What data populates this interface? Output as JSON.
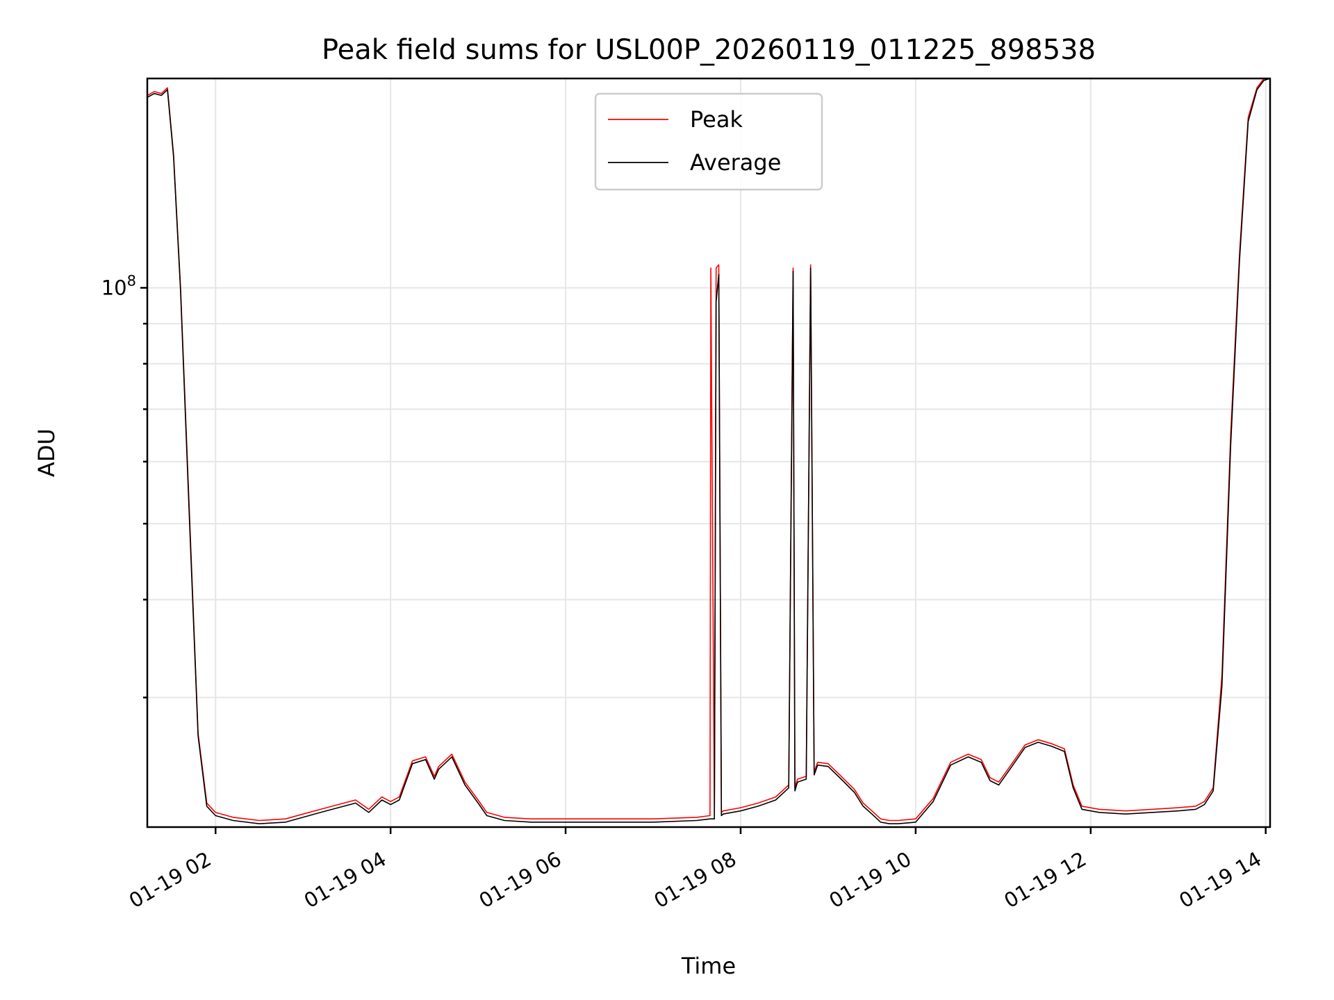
{
  "chart_data": {
    "type": "line",
    "title": "Peak field sums for USL00P_20260119_011225_898538",
    "xlabel": "Time",
    "ylabel": "ADU",
    "yscale": "log",
    "xlim": [
      1.22,
      14.05
    ],
    "ylim": [
      20500000.0,
      185000000.0
    ],
    "grid": true,
    "legend_position": "top-center",
    "x_ticks": [
      {
        "value": 2,
        "label": "01-19 02"
      },
      {
        "value": 4,
        "label": "01-19 04"
      },
      {
        "value": 6,
        "label": "01-19 06"
      },
      {
        "value": 8,
        "label": "01-19 08"
      },
      {
        "value": 10,
        "label": "01-19 10"
      },
      {
        "value": 12,
        "label": "01-19 12"
      },
      {
        "value": 14,
        "label": "01-19 14"
      }
    ],
    "y_major_ticks": [
      {
        "value": 100000000,
        "base": "10",
        "exponent": "8"
      }
    ],
    "y_minor_ticks": [
      30000000,
      40000000,
      50000000,
      60000000,
      70000000,
      80000000,
      90000000
    ],
    "series": [
      {
        "name": "Peak",
        "color": "#ff0000",
        "x": [
          1.22,
          1.3,
          1.38,
          1.45,
          1.52,
          1.6,
          1.7,
          1.8,
          1.9,
          2.0,
          2.2,
          2.5,
          2.8,
          3.0,
          3.2,
          3.4,
          3.6,
          3.75,
          3.9,
          4.0,
          4.1,
          4.25,
          4.4,
          4.5,
          4.55,
          4.7,
          4.85,
          5.0,
          5.1,
          5.3,
          5.6,
          6.0,
          6.5,
          7.0,
          7.5,
          7.65,
          7.66,
          7.7,
          7.72,
          7.75,
          7.78,
          7.8,
          8.0,
          8.2,
          8.4,
          8.55,
          8.6,
          8.62,
          8.65,
          8.75,
          8.8,
          8.84,
          8.88,
          9.0,
          9.15,
          9.3,
          9.4,
          9.5,
          9.6,
          9.7,
          9.8,
          10.0,
          10.2,
          10.4,
          10.6,
          10.75,
          10.85,
          10.95,
          11.1,
          11.25,
          11.4,
          11.55,
          11.7,
          11.8,
          11.9,
          12.1,
          12.4,
          12.7,
          13.0,
          13.2,
          13.3,
          13.4,
          13.5,
          13.6,
          13.7,
          13.8,
          13.9,
          13.98,
          14.05
        ],
        "y": [
          176000000,
          178000000,
          177000000,
          180000000,
          148000000,
          100000000,
          52000000,
          27000000,
          22000000,
          21400000,
          21100000,
          20900000,
          21000000,
          21300000,
          21600000,
          21900000,
          22200000,
          21600000,
          22400000,
          22100000,
          22400000,
          24900000,
          25200000,
          23800000,
          24500000,
          25400000,
          23400000,
          22200000,
          21400000,
          21100000,
          21000000,
          21000000,
          21000000,
          21000000,
          21100000,
          21200000,
          106000000,
          21200000,
          106000000,
          107000000,
          21400000,
          21500000,
          21700000,
          22000000,
          22400000,
          23200000,
          106000000,
          23000000,
          23600000,
          23800000,
          107000000,
          24100000,
          24800000,
          24700000,
          23800000,
          22900000,
          22000000,
          21500000,
          21000000,
          20900000,
          20900000,
          21000000,
          22300000,
          24800000,
          25400000,
          25000000,
          23700000,
          23400000,
          24700000,
          26100000,
          26500000,
          26200000,
          25800000,
          23200000,
          21800000,
          21600000,
          21500000,
          21600000,
          21700000,
          21800000,
          22100000,
          23000000,
          32000000,
          65000000,
          110000000,
          165000000,
          180000000,
          185000000,
          185000000
        ]
      },
      {
        "name": "Average",
        "color": "#000000",
        "x": [
          1.22,
          1.3,
          1.38,
          1.45,
          1.52,
          1.6,
          1.7,
          1.8,
          1.9,
          2.0,
          2.2,
          2.5,
          2.8,
          3.0,
          3.2,
          3.4,
          3.6,
          3.75,
          3.9,
          4.0,
          4.1,
          4.25,
          4.4,
          4.5,
          4.55,
          4.7,
          4.85,
          5.0,
          5.1,
          5.3,
          5.6,
          6.0,
          6.5,
          7.0,
          7.5,
          7.65,
          7.66,
          7.7,
          7.72,
          7.75,
          7.78,
          7.8,
          8.0,
          8.2,
          8.4,
          8.55,
          8.6,
          8.62,
          8.65,
          8.75,
          8.8,
          8.84,
          8.88,
          9.0,
          9.15,
          9.3,
          9.4,
          9.5,
          9.6,
          9.7,
          9.8,
          10.0,
          10.2,
          10.4,
          10.6,
          10.75,
          10.85,
          10.95,
          11.1,
          11.25,
          11.4,
          11.55,
          11.7,
          11.8,
          11.9,
          12.1,
          12.4,
          12.7,
          13.0,
          13.2,
          13.3,
          13.4,
          13.5,
          13.6,
          13.7,
          13.8,
          13.9,
          13.98,
          14.05
        ],
        "y": [
          175000000,
          177000000,
          176000000,
          179000000,
          147000000,
          99000000,
          51000000,
          26800000,
          21800000,
          21200000,
          20900000,
          20700000,
          20800000,
          21100000,
          21400000,
          21700000,
          22000000,
          21400000,
          22200000,
          21900000,
          22200000,
          24700000,
          25000000,
          23600000,
          24300000,
          25200000,
          23200000,
          22000000,
          21200000,
          20900000,
          20800000,
          20800000,
          20800000,
          20800000,
          20900000,
          21000000,
          21000000,
          21000000,
          96000000,
          104000000,
          21200000,
          21300000,
          21500000,
          21800000,
          22200000,
          23000000,
          105000000,
          22800000,
          23400000,
          23600000,
          106000000,
          23900000,
          24600000,
          24500000,
          23600000,
          22700000,
          21800000,
          21300000,
          20800000,
          20700000,
          20700000,
          20800000,
          22100000,
          24600000,
          25200000,
          24800000,
          23500000,
          23200000,
          24500000,
          25900000,
          26300000,
          26000000,
          25600000,
          23000000,
          21600000,
          21400000,
          21300000,
          21400000,
          21500000,
          21600000,
          21900000,
          22800000,
          31000000,
          63000000,
          108000000,
          163000000,
          179000000,
          184000000,
          185000000
        ]
      }
    ]
  }
}
